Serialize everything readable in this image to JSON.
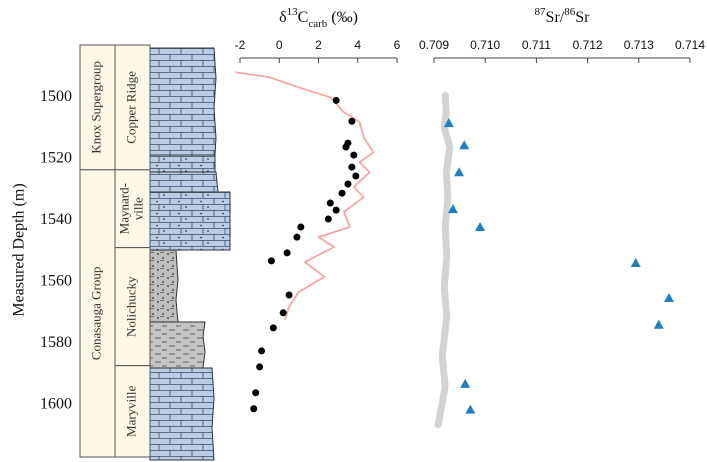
{
  "chart_data": [
    {
      "type": "profile",
      "title": [
        {
          "text": "δ"
        },
        {
          "text": "13",
          "style": "sup"
        },
        {
          "text": "C"
        },
        {
          "text": "carb",
          "style": "sub"
        },
        {
          "text": " (‰)"
        }
      ],
      "y_label": "Measured Depth (m)",
      "xlim": [
        -2,
        6
      ],
      "xticks": [
        -2,
        0,
        2,
        4,
        6
      ],
      "ylim": [
        1483,
        1617
      ],
      "yticks": [
        1500,
        1520,
        1540,
        1560,
        1580,
        1600
      ],
      "series": [
        {
          "kind": "line",
          "color": "#f4a6a6",
          "x": [
            -2.2,
            -0.5,
            1.0,
            2.6,
            3.3,
            4.1,
            4.3,
            4.8,
            4.1,
            4.6,
            3.8,
            4.3,
            3.3,
            3.6,
            2.0,
            2.8,
            1.3,
            2.3,
            1.0,
            0.5,
            0.3
          ],
          "y": [
            1491.9,
            1493.5,
            1496.8,
            1500,
            1504.9,
            1508.1,
            1513,
            1517.9,
            1521.1,
            1524.4,
            1529.2,
            1532.5,
            1537.3,
            1542.2,
            1545.5,
            1548.7,
            1553.6,
            1558.4,
            1563.3,
            1568.2,
            1572.1
          ]
        },
        {
          "kind": "points",
          "marker": "circle",
          "color": "#000000",
          "x": [
            2.9,
            3.7,
            3.5,
            3.4,
            3.8,
            3.7,
            3.9,
            3.5,
            3.2,
            2.6,
            2.9,
            2.5,
            1.1,
            0.9,
            0.4,
            -0.4,
            0.5,
            0.2,
            -0.3,
            -0.9,
            -1.0,
            -1.2,
            -1.3
          ],
          "y": [
            1501.0,
            1507.8,
            1514.9,
            1516.2,
            1518.8,
            1522.7,
            1525.6,
            1528.2,
            1531.2,
            1534.4,
            1536.7,
            1539.6,
            1542.2,
            1545.5,
            1550.6,
            1553.2,
            1564.3,
            1570.1,
            1575.0,
            1582.5,
            1587.7,
            1596.1,
            1601.3
          ]
        }
      ],
      "stratigraphy": {
        "groups": [
          {
            "label": "Knox Supergroup",
            "top": 1483,
            "bottom": 1523.6
          },
          {
            "label": "Conasauga Group",
            "top": 1523.6,
            "bottom": 1617
          }
        ],
        "formations": [
          {
            "label": [
              "Copper Ridge"
            ],
            "top": 1483,
            "bottom": 1523.6
          },
          {
            "label": [
              "Maynard-",
              "ville"
            ],
            "top": 1523.6,
            "bottom": 1548.9
          },
          {
            "label": [
              "Nolichucky"
            ],
            "top": 1548.9,
            "bottom": 1587.3
          },
          {
            "label": [
              "Maryville"
            ],
            "top": 1587.3,
            "bottom": 1617
          }
        ]
      }
    },
    {
      "type": "profile",
      "title": [
        {
          "text": "87",
          "style": "sup"
        },
        {
          "text": "Sr/"
        },
        {
          "text": "86",
          "style": "sup"
        },
        {
          "text": "Sr"
        }
      ],
      "xlim": [
        0.709,
        0.714
      ],
      "xticks": [
        0.709,
        {
          "value": 0.71,
          "label": "0.710"
        },
        0.711,
        0.712,
        0.713,
        0.714
      ],
      "ylim": [
        1483,
        1617
      ],
      "series": [
        {
          "kind": "line",
          "color": "#d3d3d3",
          "x": [
            0.70922,
            0.70924,
            0.7092,
            0.70931,
            0.70924,
            0.70927,
            0.70922,
            0.70925,
            0.7092,
            0.70925,
            0.70916,
            0.70922,
            0.70908
          ],
          "y": [
            1499.4,
            1504.9,
            1509.7,
            1516.2,
            1524.4,
            1532.5,
            1542.2,
            1551.9,
            1561.7,
            1571.4,
            1584.4,
            1594.2,
            1606.5
          ]
        },
        {
          "kind": "points",
          "marker": "triangle",
          "color": "#1f7fc0",
          "x": [
            0.70929,
            0.70959,
            0.70949,
            0.70937,
            0.7099,
            0.71294,
            0.71359,
            0.71339,
            0.70961,
            0.70971
          ],
          "y": [
            1508.4,
            1515.6,
            1524.4,
            1536.4,
            1542.2,
            1553.9,
            1565.3,
            1574.0,
            1593.2,
            1601.6
          ]
        }
      ]
    }
  ]
}
